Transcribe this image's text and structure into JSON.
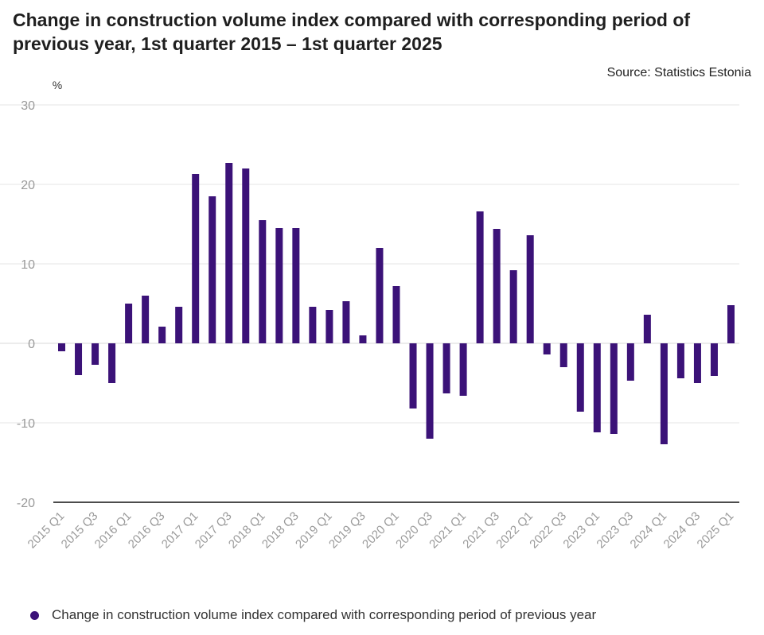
{
  "colors": {
    "bar": "#3b1278",
    "grid": "#e4e4e4",
    "axis_text": "#9a9a9a",
    "zero_line": "#d8d8d8",
    "base_line": "#111111"
  },
  "chart_data": {
    "type": "bar",
    "title": "Change in construction volume index compared with corresponding period of previous year, 1st quarter 2015 – 1st quarter 2025",
    "source": "Source: Statistics Estonia",
    "ylabel": "%",
    "xlabel": "",
    "ylim": [
      -20,
      30
    ],
    "yticks": [
      30,
      20,
      10,
      0,
      -10,
      -20
    ],
    "grid": true,
    "legend_position": "bottom-left",
    "series": [
      {
        "name": "Change in construction volume index compared with corresponding period of previous year",
        "values": [
          -1,
          -4,
          -2.7,
          -5,
          5,
          6,
          2.1,
          4.6,
          21.3,
          18.5,
          22.7,
          22,
          15.5,
          14.5,
          14.5,
          4.6,
          4.2,
          5.3,
          1,
          12,
          7.2,
          -8.2,
          -12,
          -6.3,
          -6.6,
          16.6,
          14.4,
          9.2,
          13.6,
          -1.4,
          -3,
          -8.6,
          -11.2,
          -11.4,
          -4.7,
          3.6,
          -12.7,
          -4.4,
          -5,
          -4.1,
          4.8
        ]
      }
    ],
    "categories": [
      "2015 Q1",
      "2015 Q2",
      "2015 Q3",
      "2015 Q4",
      "2016 Q1",
      "2016 Q2",
      "2016 Q3",
      "2016 Q4",
      "2017 Q1",
      "2017 Q2",
      "2017 Q3",
      "2017 Q4",
      "2018 Q1",
      "2018 Q2",
      "2018 Q3",
      "2018 Q4",
      "2019 Q1",
      "2019 Q2",
      "2019 Q3",
      "2019 Q4",
      "2020 Q1",
      "2020 Q2",
      "2020 Q3",
      "2020 Q4",
      "2021 Q1",
      "2021 Q2",
      "2021 Q3",
      "2021 Q4",
      "2022 Q1",
      "2022 Q2",
      "2022 Q3",
      "2022 Q4",
      "2023 Q1",
      "2023 Q2",
      "2023 Q3",
      "2023 Q4",
      "2024 Q1",
      "2024 Q2",
      "2024 Q3",
      "2024 Q4",
      "2025 Q1"
    ],
    "xticklabels": [
      "2015 Q1",
      "2015 Q3",
      "2016 Q1",
      "2016 Q3",
      "2017 Q1",
      "2017 Q3",
      "2018 Q1",
      "2018 Q3",
      "2019 Q1",
      "2019 Q3",
      "2020 Q1",
      "2020 Q3",
      "2021 Q1",
      "2021 Q3",
      "2022 Q1",
      "2022 Q3",
      "2023 Q1",
      "2023 Q3",
      "2024 Q1",
      "2024 Q3",
      "2025 Q1"
    ]
  }
}
